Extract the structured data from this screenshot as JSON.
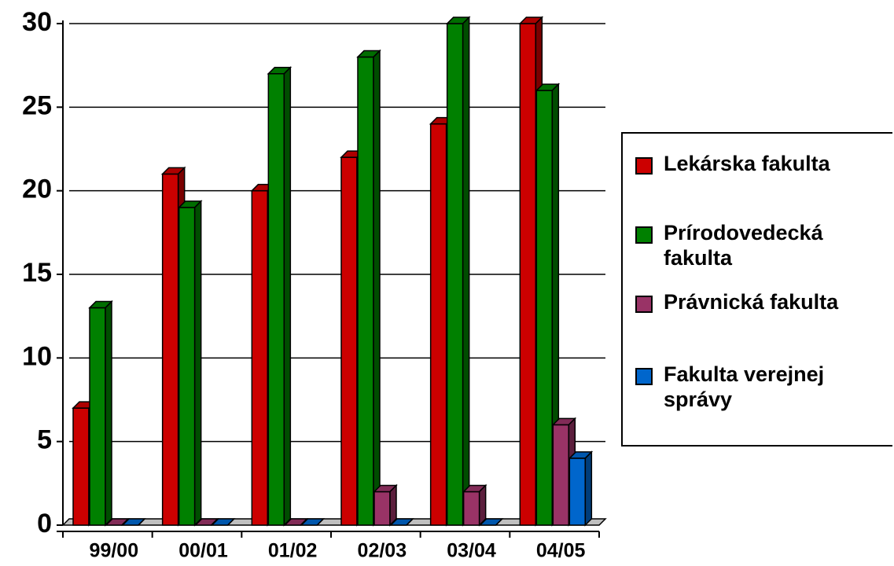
{
  "chart_data": {
    "type": "bar",
    "categories": [
      "99/00",
      "00/01",
      "01/02",
      "02/03",
      "03/04",
      "04/05"
    ],
    "series": [
      {
        "name": "Lekárska fakulta",
        "color": "#cc0000",
        "values": [
          7,
          21,
          20,
          22,
          24,
          30
        ]
      },
      {
        "name": "Prírodovedecká fakulta",
        "color": "#008000",
        "values": [
          13,
          19,
          27,
          28,
          30,
          26
        ]
      },
      {
        "name": "Právnická fakulta",
        "color": "#993366",
        "values": [
          0,
          0,
          0,
          2,
          2,
          6
        ]
      },
      {
        "name": "Fakulta verejnej správy",
        "color": "#0066cc",
        "values": [
          0,
          0,
          0,
          0,
          0,
          4
        ]
      }
    ],
    "ylim": [
      0,
      30
    ],
    "yticks": [
      0,
      5,
      10,
      15,
      20,
      25,
      30
    ],
    "grid": true,
    "legend": "right"
  }
}
